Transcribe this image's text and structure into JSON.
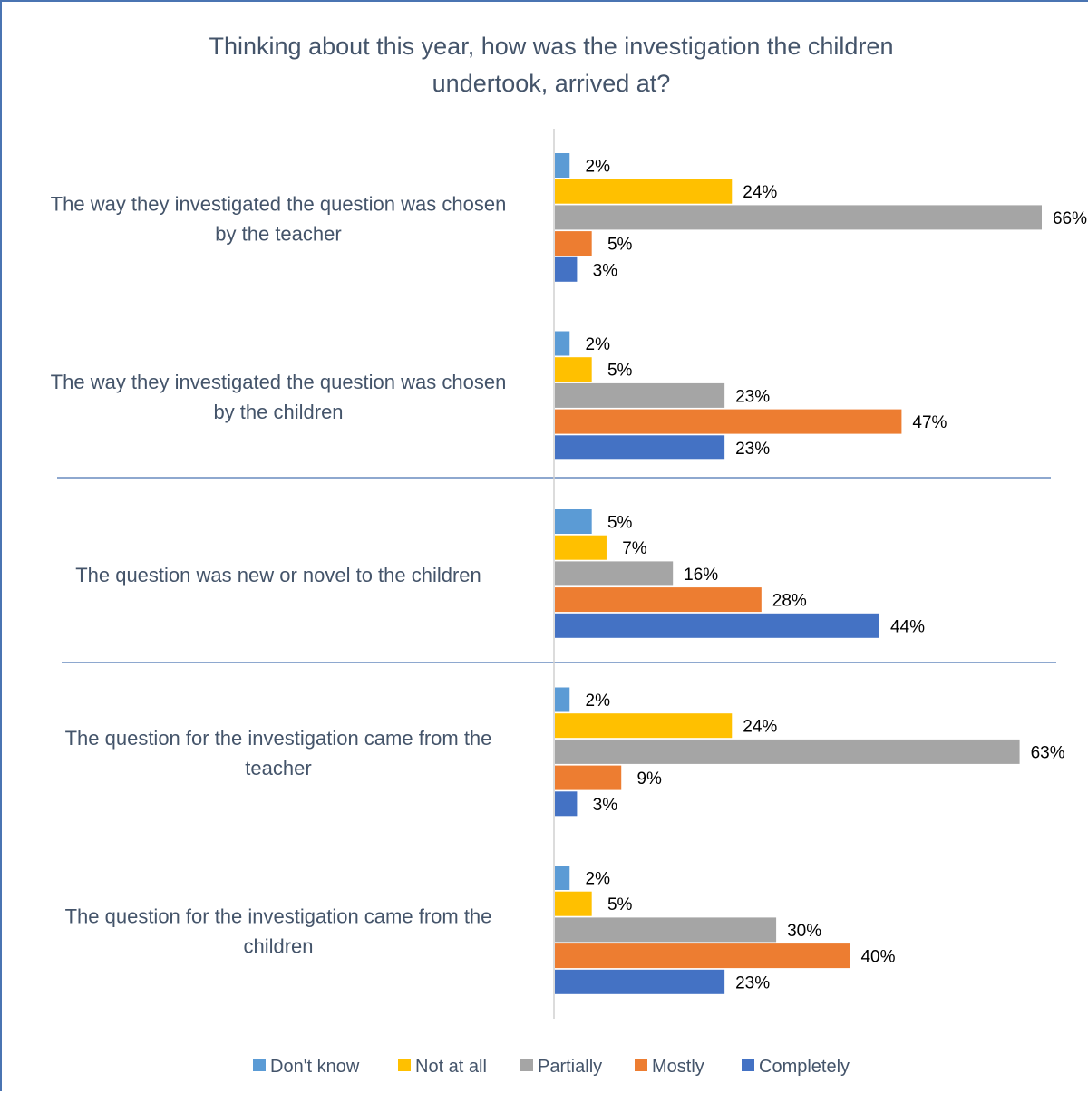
{
  "chart_data": {
    "type": "bar",
    "orientation": "horizontal",
    "title": "Thinking about this year, how was the investigation the children undertook, arrived at?",
    "title_lines": [
      "Thinking about this year, how was the investigation the children",
      "undertook, arrived at?"
    ],
    "categories": [
      {
        "lines": [
          "The way they investigated the question was chosen",
          "by the teacher"
        ]
      },
      {
        "lines": [
          "The way they investigated the question was chosen",
          "by the children"
        ]
      },
      {
        "lines": [
          "The question was new or novel to the children"
        ]
      },
      {
        "lines": [
          "The question for the investigation came from the",
          "teacher"
        ]
      },
      {
        "lines": [
          "The question for the investigation came from the",
          "children"
        ]
      }
    ],
    "series": [
      {
        "name": "Don't know",
        "color": "#5b9bd5",
        "values": [
          2,
          2,
          5,
          2,
          2
        ],
        "labels": [
          "2%",
          "2%",
          "5%",
          "2%",
          "2%"
        ]
      },
      {
        "name": "Not at all",
        "color": "#ffc000",
        "values": [
          24,
          5,
          7,
          24,
          5
        ],
        "labels": [
          "24%",
          "5%",
          "7%",
          "24%",
          "5%"
        ]
      },
      {
        "name": "Partially",
        "color": "#a5a5a5",
        "values": [
          66,
          23,
          16,
          63,
          30
        ],
        "labels": [
          "66%",
          "23%",
          "16%",
          "63%",
          "30%"
        ]
      },
      {
        "name": "Mostly",
        "color": "#ed7d31",
        "values": [
          5,
          47,
          28,
          9,
          40
        ],
        "labels": [
          "5%",
          "47%",
          "28%",
          "9%",
          "40%"
        ]
      },
      {
        "name": "Completely",
        "color": "#4472c4",
        "values": [
          3,
          23,
          44,
          3,
          23
        ],
        "labels": [
          "3%",
          "23%",
          "44%",
          "3%",
          "23%"
        ]
      }
    ],
    "xlim": [
      0,
      66
    ],
    "legend_position": "bottom",
    "grid": false,
    "group_separators": true
  }
}
